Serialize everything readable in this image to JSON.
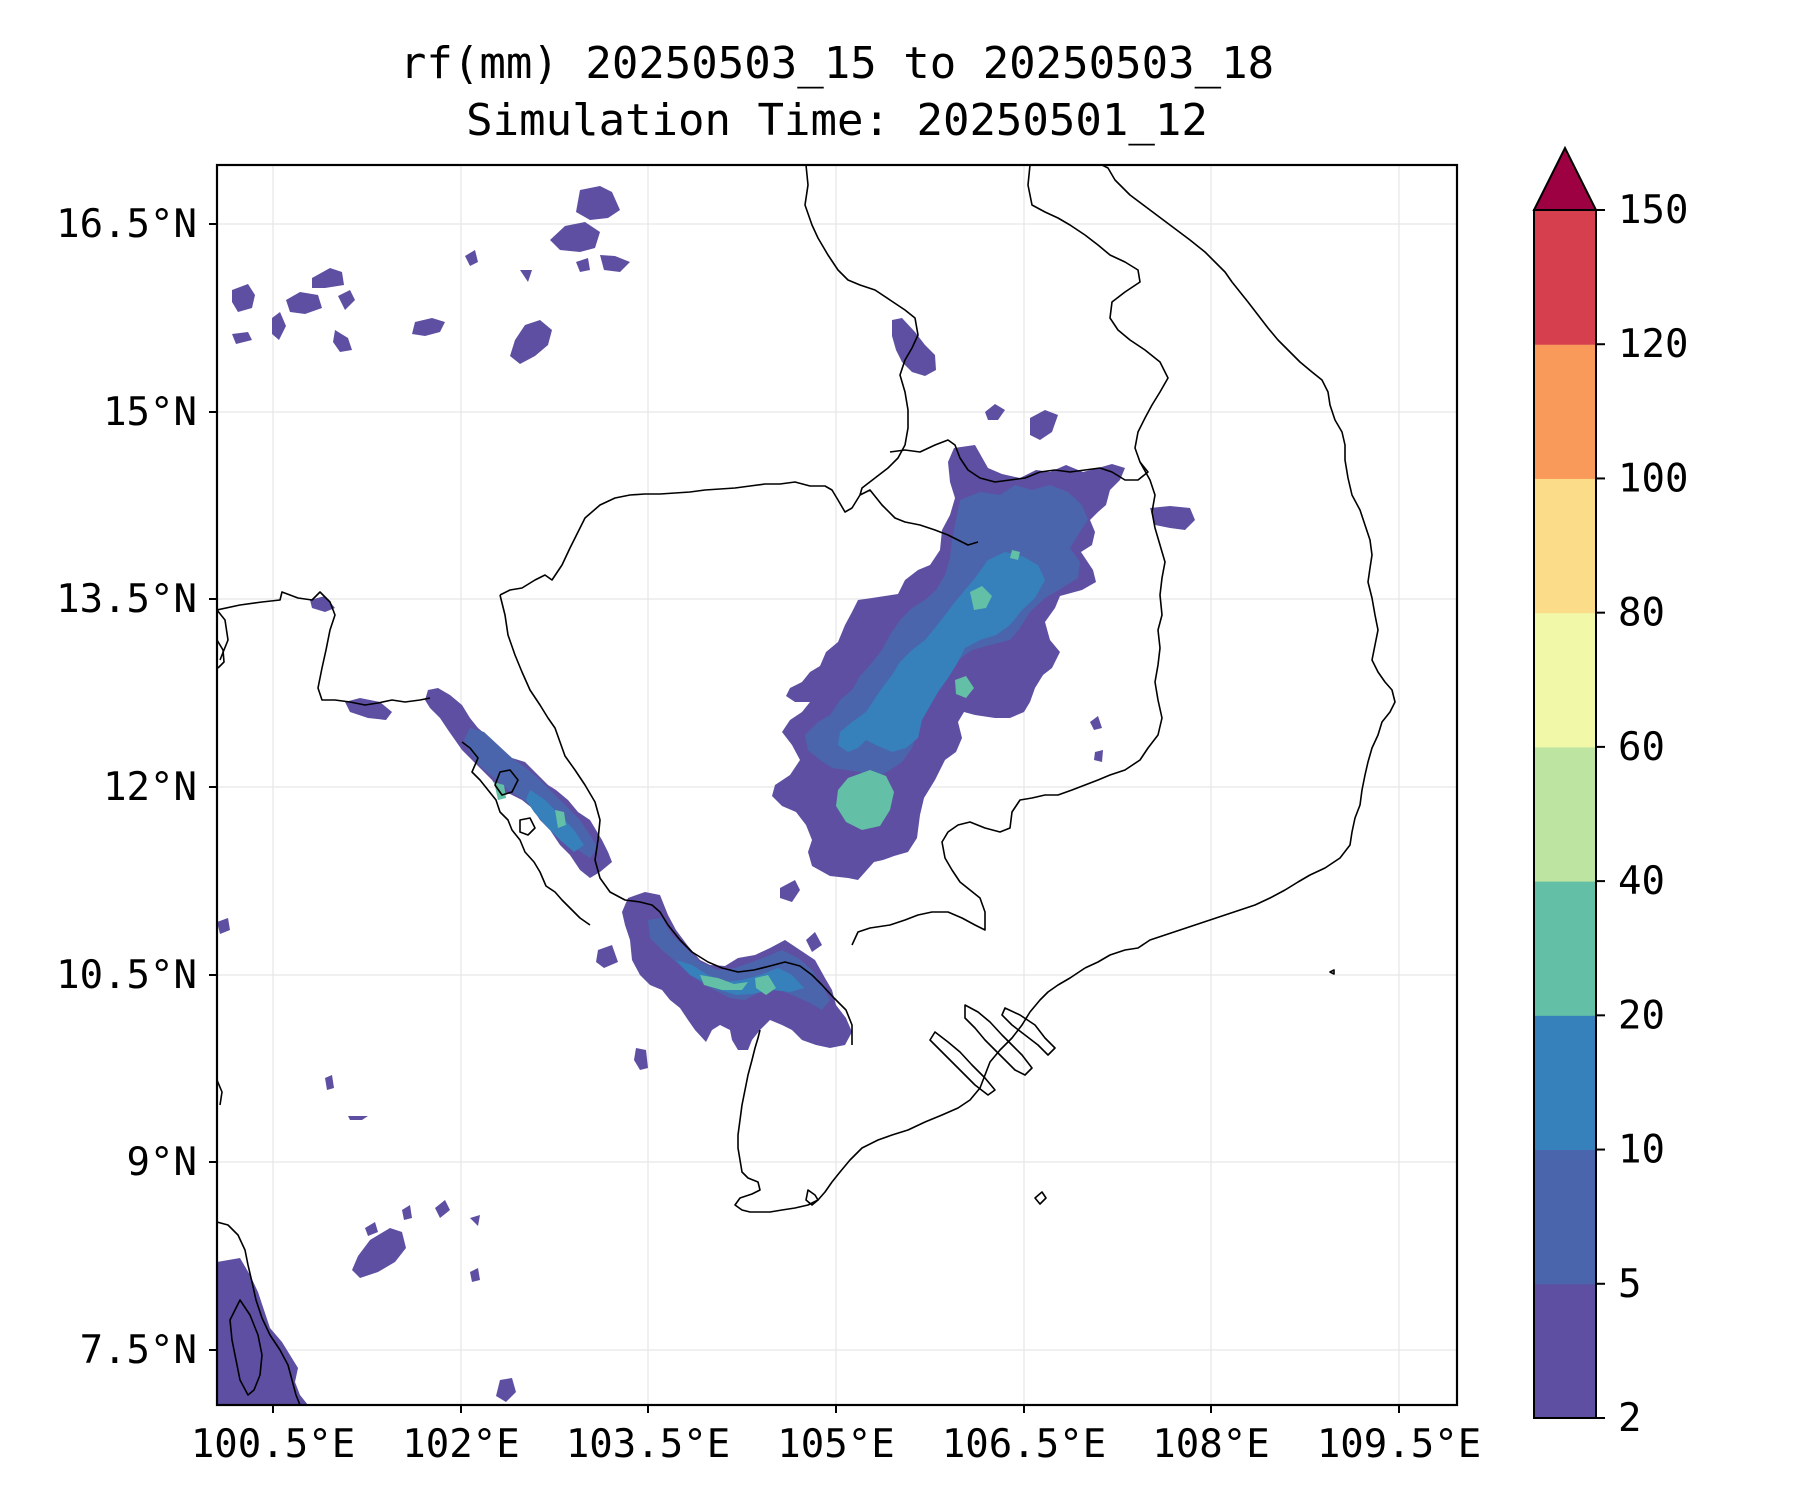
{
  "title": {
    "line1": "rf(mm) 20250503_15 to 20250503_18",
    "line2": "Simulation Time: 20250501_12"
  },
  "map": {
    "lon_range": [
      100.0,
      109.9
    ],
    "lat_range": [
      7.05,
      16.95
    ],
    "gridlines": true,
    "lon_ticks": [
      "100.5°E",
      "102°E",
      "103.5°E",
      "105°E",
      "106.5°E",
      "108°E",
      "109.5°E"
    ],
    "lat_ticks": [
      "16.5°N",
      "15°N",
      "13.5°N",
      "12°N",
      "10.5°N",
      "9°N",
      "7.5°N"
    ]
  },
  "colorbar": {
    "levels": [
      "2",
      "5",
      "10",
      "20",
      "40",
      "60",
      "80",
      "100",
      "120",
      "150"
    ],
    "colors": [
      "#5e4fa2",
      "#4b65ad",
      "#3680bb",
      "#63bfa5",
      "#bde4a0",
      "#f1f9a9",
      "#fbdd89",
      "#f99a5b",
      "#d63f4e",
      "#9e0142"
    ],
    "extend": "max"
  }
}
